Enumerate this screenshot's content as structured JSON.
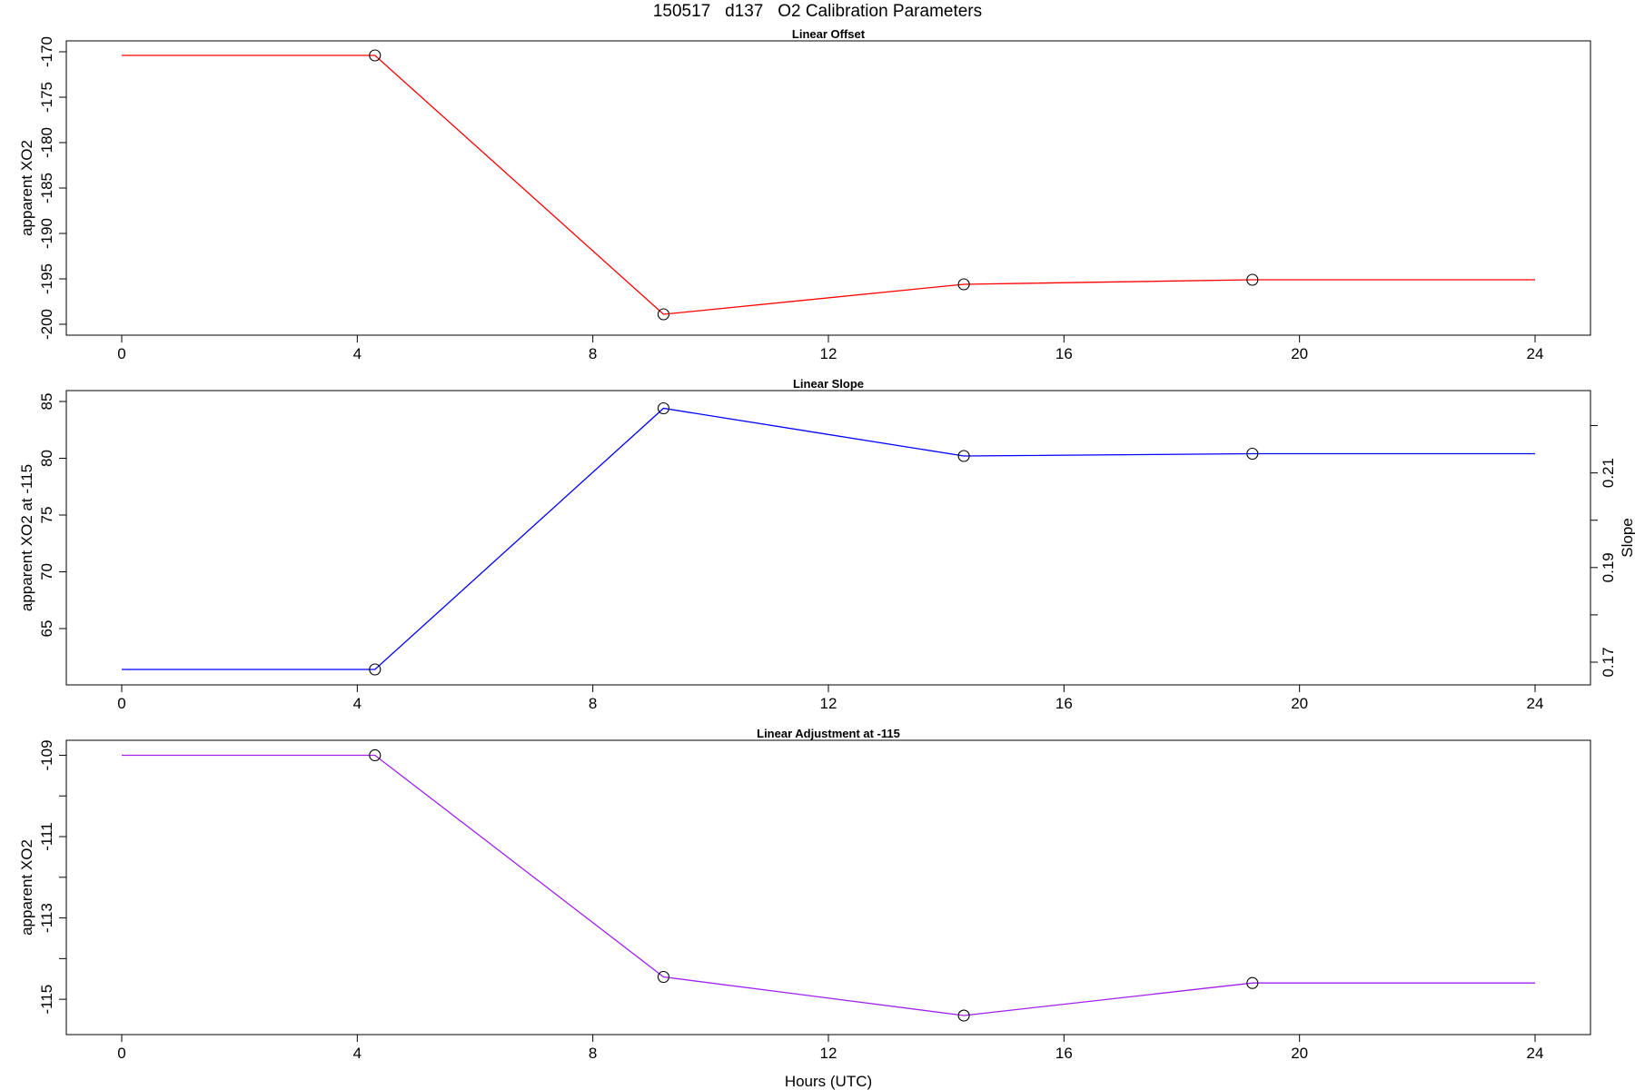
{
  "figure": {
    "title": "150517   d137   O2 Calibration Parameters",
    "xlabel": "Hours (UTC)"
  },
  "chart_data": [
    {
      "type": "line",
      "title": "Linear Offset",
      "xlabel": "",
      "ylabel": "apparent XO2",
      "color": "#ff0000",
      "xlim": [
        0,
        24
      ],
      "ylim": [
        -200,
        -170
      ],
      "xticks": [
        0,
        4,
        8,
        12,
        16,
        20,
        24
      ],
      "yticks": [
        -200,
        -195,
        -190,
        -185,
        -180,
        -175,
        -170
      ],
      "series": [
        {
          "x": [
            0.0,
            4.3,
            9.2,
            14.3,
            19.2,
            24.0
          ],
          "y": [
            -170.4,
            -170.4,
            -198.9,
            -195.6,
            -195.1,
            -195.1
          ],
          "markers": [
            false,
            true,
            true,
            true,
            true,
            false
          ]
        }
      ]
    },
    {
      "type": "line",
      "title": "Linear Slope",
      "xlabel": "",
      "ylabel": "apparent XO2 at -115",
      "y2label": "Slope",
      "color": "#0000ff",
      "xlim": [
        0,
        24
      ],
      "ylim": [
        61,
        85
      ],
      "xticks": [
        0,
        4,
        8,
        12,
        16,
        20,
        24
      ],
      "yticks": [
        65,
        70,
        75,
        80,
        85
      ],
      "y2ticks": [
        0.17,
        0.18,
        0.19,
        0.2,
        0.21,
        0.22
      ],
      "y2ticklabels": [
        "0.17",
        "",
        "0.19",
        "",
        "0.21",
        ""
      ],
      "series": [
        {
          "x": [
            0.0,
            4.3,
            9.2,
            14.3,
            19.2,
            24.0
          ],
          "y": [
            61.4,
            61.4,
            84.4,
            80.2,
            80.4,
            80.4
          ],
          "markers": [
            false,
            true,
            true,
            true,
            true,
            false
          ]
        }
      ]
    },
    {
      "type": "line",
      "title": "Linear Adjustment at -115",
      "xlabel": "",
      "ylabel": "apparent XO2",
      "color": "#a020f0",
      "xlim": [
        0,
        24
      ],
      "ylim": [
        -115.6,
        -108.9
      ],
      "xticks": [
        0,
        4,
        8,
        12,
        16,
        20,
        24
      ],
      "yticks": [
        -115,
        -114,
        -113,
        -112,
        -111,
        -110,
        -109
      ],
      "yticklabels": [
        "-115",
        "",
        "-113",
        "",
        "-111",
        "",
        "-109"
      ],
      "series": [
        {
          "x": [
            0.0,
            4.3,
            9.2,
            14.3,
            19.2,
            24.0
          ],
          "y": [
            -109.0,
            -109.0,
            -114.45,
            -115.4,
            -114.6,
            -114.6
          ],
          "markers": [
            false,
            true,
            true,
            true,
            true,
            false
          ]
        }
      ]
    }
  ]
}
